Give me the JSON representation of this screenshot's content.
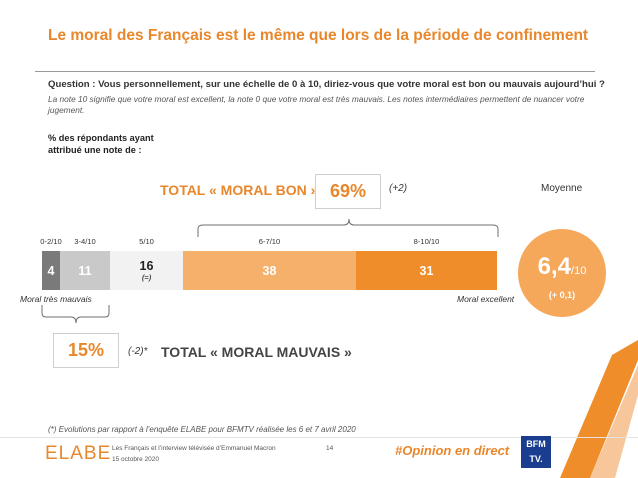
{
  "title": "Le moral des Français est le même que lors de la période de confinement",
  "question": "Question : Vous personnellement, sur une échelle de 0 à 10, diriez-vous que votre moral est bon ou mauvais aujourd’hui ?",
  "note": "La note 10 signifie que votre moral est excellent, la note 0 que votre moral est très mauvais. Les notes intermédiaires permettent de nuancer votre jugement.",
  "pct_label": "% des répondants ayant attribué une note de :",
  "good": {
    "title": "TOTAL « MORAL BON »",
    "value": "69%",
    "delta": "(+2)"
  },
  "average": {
    "label": "Moyenne",
    "value": "6,4",
    "unit": "/10",
    "delta": "(+ 0,1)"
  },
  "bad": {
    "title": "TOTAL « MORAL MAUVAIS »",
    "value": "15%",
    "delta": "(-2)*"
  },
  "ends": {
    "left": "Moral très mauvais",
    "right": "Moral excellent"
  },
  "chart_data": {
    "type": "bar",
    "orientation": "horizontal-stacked",
    "categories": [
      "0-2/10",
      "3-4/10",
      "5/10",
      "6-7/10",
      "8-10/10"
    ],
    "values": [
      4,
      11,
      16,
      38,
      31
    ],
    "value_labels": [
      "4",
      "11",
      "16",
      "38",
      "31"
    ],
    "deltas": [
      "",
      "",
      "(=)",
      "",
      ""
    ],
    "colors": [
      "#7a7a7a",
      "#c9c9c9",
      "#f2f2f2",
      "#f5b06b",
      "#ef8d2b"
    ]
  },
  "footnote": "(*) Evolutions par rapport à l’enquête ELABE pour BFMTV réalisée les 6 et 7 avril 2020",
  "footer": {
    "logo": "ELABE",
    "source_line1": "Les Français et l’interview télévisée d’Emmanuel Macron",
    "source_line2": "15 octobre 2020",
    "page": "14",
    "hashtag": "#Opinion en direct",
    "partner_line1": "BFM",
    "partner_line2": "TV."
  }
}
